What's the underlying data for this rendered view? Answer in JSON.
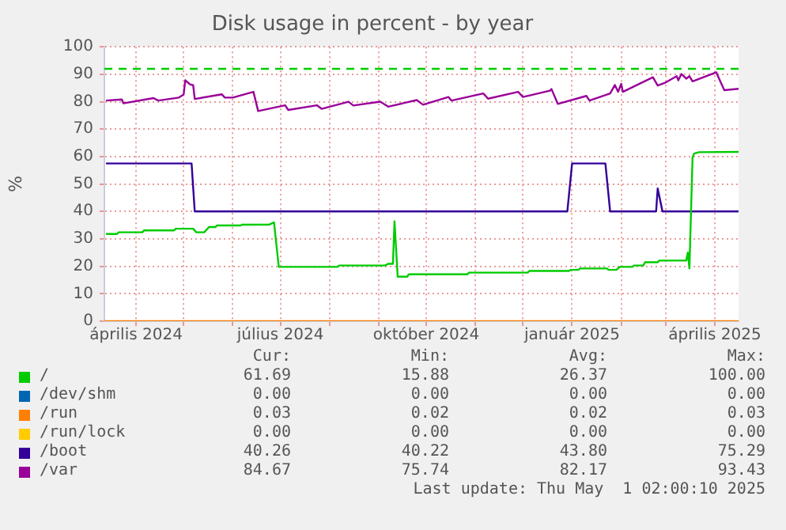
{
  "chart_data": {
    "type": "line",
    "title": "Disk usage in percent - by year",
    "ylabel": "%",
    "xlim": [
      "2024-03-12",
      "2025-04-16"
    ],
    "xticks": [
      {
        "value": "2024-04-01",
        "label": "április 2024"
      },
      {
        "value": "2024-05-01",
        "label": null
      },
      {
        "value": "2024-06-01",
        "label": null
      },
      {
        "value": "2024-07-01",
        "label": "július 2024"
      },
      {
        "value": "2024-08-01",
        "label": null
      },
      {
        "value": "2024-09-01",
        "label": null
      },
      {
        "value": "2024-10-01",
        "label": "október 2024"
      },
      {
        "value": "2024-11-01",
        "label": null
      },
      {
        "value": "2024-12-01",
        "label": null
      },
      {
        "value": "2025-01-01",
        "label": "január 2025"
      },
      {
        "value": "2025-02-01",
        "label": null
      },
      {
        "value": "2025-03-01",
        "label": null
      },
      {
        "value": "2025-04-01",
        "label": "április 2025"
      }
    ],
    "ylim": [
      0,
      100
    ],
    "yticks": [
      0,
      10,
      20,
      30,
      40,
      50,
      60,
      70,
      80,
      90,
      100
    ],
    "grid": true,
    "legend": "bottom",
    "marker": "none",
    "line_style": "solid",
    "ref_lines": [
      {
        "axis": "y",
        "value": 92,
        "color": "#00cc00",
        "line_style": "dashed"
      }
    ],
    "series": [
      {
        "name": "/",
        "color": "#00cc00",
        "x": [
          "2024-03-13",
          "2024-03-20",
          "2024-03-21",
          "2024-04-05",
          "2024-04-06",
          "2024-04-25",
          "2024-04-26",
          "2024-05-07",
          "2024-05-09",
          "2024-05-14",
          "2024-05-17",
          "2024-05-21",
          "2024-05-22",
          "2024-06-06",
          "2024-06-07",
          "2024-06-24",
          "2024-06-27",
          "2024-06-30",
          "2024-08-06",
          "2024-08-07",
          "2024-09-05",
          "2024-09-07",
          "2024-09-10",
          "2024-09-11",
          "2024-09-13",
          "2024-09-19",
          "2024-09-20",
          "2024-10-27",
          "2024-10-28",
          "2024-12-04",
          "2024-12-05",
          "2024-12-30",
          "2024-12-31",
          "2025-01-05",
          "2025-01-06",
          "2025-01-23",
          "2025-01-24",
          "2025-01-29",
          "2025-01-31",
          "2025-02-08",
          "2025-02-09",
          "2025-02-15",
          "2025-02-16",
          "2025-02-24",
          "2025-02-25",
          "2025-03-14",
          "2025-03-15",
          "2025-03-16",
          "2025-03-18",
          "2025-03-19",
          "2025-03-22",
          "2025-04-16"
        ],
        "values": [
          31.8,
          31.8,
          32.4,
          32.4,
          33.1,
          33.1,
          33.7,
          33.7,
          32.4,
          32.4,
          34.3,
          34.3,
          34.9,
          34.9,
          35.2,
          35.2,
          36,
          19.8,
          19.8,
          20.3,
          20.3,
          20.9,
          20.9,
          36.4,
          16.2,
          16.2,
          17.1,
          17.1,
          17.7,
          17.7,
          18.3,
          18.3,
          18.7,
          18.7,
          19.2,
          19.2,
          18.7,
          18.7,
          19.8,
          19.8,
          20.3,
          20.3,
          21.5,
          21.5,
          22.1,
          22.1,
          25,
          19.2,
          59.8,
          61.1,
          61.6,
          61.7
        ]
      },
      {
        "name": "/dev/shm",
        "color": "#0066b3"
      },
      {
        "name": "/run",
        "color": "#ff8000",
        "x": [
          "2024-03-12",
          "2025-04-16"
        ],
        "values": [
          0,
          0
        ]
      },
      {
        "name": "/run/lock",
        "color": "#ffcc00"
      },
      {
        "name": "/boot",
        "color": "#330099",
        "x": [
          "2024-03-13",
          "2024-05-06",
          "2024-05-08",
          "2024-12-29",
          "2025-01-01",
          "2025-01-22",
          "2025-01-25",
          "2025-02-23",
          "2025-02-24",
          "2025-02-27",
          "2025-04-16"
        ],
        "values": [
          57.5,
          57.5,
          40,
          40,
          57.5,
          57.5,
          40,
          40,
          48.4,
          40,
          40
        ]
      },
      {
        "name": "/var",
        "color": "#990099",
        "x": [
          "2024-03-13",
          "2024-03-23",
          "2024-03-24",
          "2024-04-12",
          "2024-04-15",
          "2024-04-28",
          "2024-05-01",
          "2024-05-02",
          "2024-05-05",
          "2024-05-07",
          "2024-05-08",
          "2024-05-25",
          "2024-05-27",
          "2024-06-01",
          "2024-06-14",
          "2024-06-17",
          "2024-07-04",
          "2024-07-06",
          "2024-07-24",
          "2024-07-27",
          "2024-08-13",
          "2024-08-16",
          "2024-09-02",
          "2024-09-07",
          "2024-09-25",
          "2024-09-29",
          "2024-10-15",
          "2024-10-17",
          "2024-11-06",
          "2024-11-09",
          "2024-11-28",
          "2024-12-01",
          "2024-12-18",
          "2024-12-19",
          "2024-12-23",
          "2025-01-10",
          "2025-01-12",
          "2025-01-25",
          "2025-01-28",
          "2025-01-30",
          "2025-02-01",
          "2025-02-02",
          "2025-02-21",
          "2025-02-24",
          "2025-03-01",
          "2025-03-08",
          "2025-03-09",
          "2025-03-11",
          "2025-03-14",
          "2025-03-16",
          "2025-03-18",
          "2025-04-02",
          "2025-04-03",
          "2025-04-07",
          "2025-04-16"
        ],
        "values": [
          80.4,
          80.8,
          79.4,
          81.3,
          80.4,
          81.5,
          82.6,
          87.8,
          86.3,
          86,
          81,
          82.7,
          81.5,
          81.5,
          83.6,
          76.6,
          78.7,
          77,
          78.7,
          77.4,
          80,
          78.6,
          80,
          78.2,
          80.6,
          78.9,
          81.7,
          80.4,
          83,
          81.1,
          83.6,
          81.7,
          84,
          84.6,
          79.2,
          82.1,
          80.4,
          83,
          86.1,
          83.6,
          86.5,
          83.6,
          88.9,
          85.9,
          87,
          89.3,
          87.8,
          90.1,
          88.4,
          89.3,
          87.4,
          90.7,
          89.3,
          84.2,
          84.7
        ]
      }
    ],
    "annotations": [
      "Cur:",
      "Min:",
      "Avg:",
      "Max:",
      "61.69",
      "15.88",
      "26.37",
      "100.00",
      "0.00",
      "0.00",
      "0.00",
      "0.00",
      "0.03",
      "0.02",
      "0.02",
      "0.03",
      "0.00",
      "0.00",
      "0.00",
      "0.00",
      "40.26",
      "40.22",
      "43.80",
      "75.29",
      "84.67",
      "75.74",
      "82.17",
      "93.43",
      "Last update: Thu May  1 02:00:10 2025"
    ]
  }
}
